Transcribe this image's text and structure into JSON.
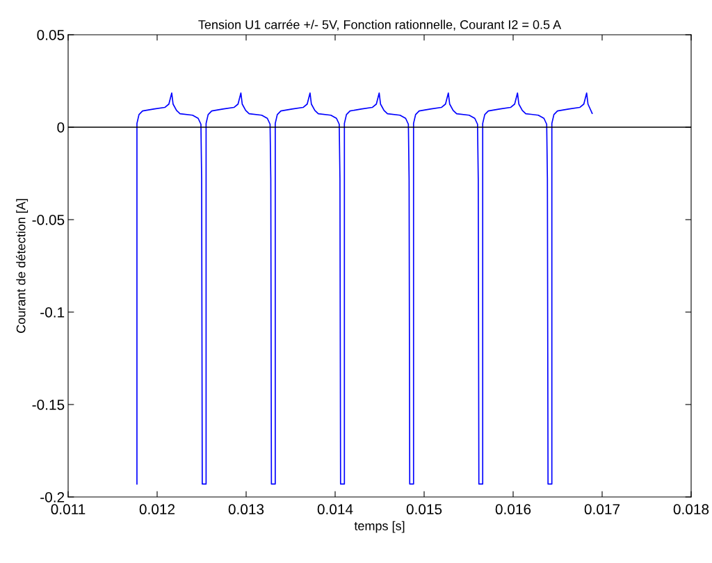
{
  "chart_data": {
    "type": "line",
    "title": "Tension U1 carrée +/- 5V, Fonction rationnelle, Courant I2 = 0.5 A",
    "xlabel": "temps [s]",
    "ylabel": "Courant de détection [A]",
    "series": [
      {
        "color": "#0000ff",
        "x": [
          0.011773,
          0.011773,
          0.011773,
          0.011796,
          0.011836,
          0.011961,
          0.012086,
          0.012132,
          0.012164,
          0.012179,
          0.012218,
          0.012257,
          0.012398,
          0.012461,
          0.012492,
          0.0125,
          0.012507,
          0.01255,
          0.01255,
          0.012573,
          0.012613,
          0.012738,
          0.012863,
          0.012909,
          0.012941,
          0.012956,
          0.012995,
          0.013034,
          0.013175,
          0.013238,
          0.013269,
          0.013277,
          0.013284,
          0.013327,
          0.013327,
          0.01335,
          0.01339,
          0.013515,
          0.01364,
          0.013686,
          0.013718,
          0.013733,
          0.013772,
          0.013811,
          0.013952,
          0.014015,
          0.014046,
          0.014054,
          0.014061,
          0.014104,
          0.014104,
          0.014127,
          0.014167,
          0.014292,
          0.014417,
          0.014463,
          0.014495,
          0.01451,
          0.014549,
          0.014588,
          0.014729,
          0.014792,
          0.014823,
          0.014831,
          0.014838,
          0.014881,
          0.014881,
          0.014904,
          0.014944,
          0.015069,
          0.015194,
          0.01524,
          0.015272,
          0.015287,
          0.015326,
          0.015365,
          0.015506,
          0.015569,
          0.0156,
          0.015608,
          0.015615,
          0.015658,
          0.015658,
          0.015681,
          0.015721,
          0.015846,
          0.015971,
          0.016017,
          0.016049,
          0.016064,
          0.016103,
          0.016142,
          0.016283,
          0.016346,
          0.016377,
          0.016385,
          0.016392,
          0.016435,
          0.016435,
          0.016458,
          0.016498,
          0.016623,
          0.016748,
          0.016794,
          0.016826,
          0.016841,
          0.016888
        ],
        "values": [
          -0.193,
          -0.019,
          0.002,
          0.0068,
          0.0088,
          0.0098,
          0.0107,
          0.0125,
          0.0185,
          0.0125,
          0.0091,
          0.0073,
          0.0065,
          0.0048,
          0.0016,
          -0.028,
          -0.193,
          -0.193,
          0.002,
          0.0068,
          0.0088,
          0.0098,
          0.0107,
          0.0125,
          0.0185,
          0.0125,
          0.0091,
          0.0073,
          0.0065,
          0.0048,
          0.0016,
          -0.028,
          -0.193,
          -0.193,
          0.002,
          0.0068,
          0.0088,
          0.0098,
          0.0107,
          0.0125,
          0.0185,
          0.0125,
          0.0091,
          0.0073,
          0.0065,
          0.0048,
          0.0016,
          -0.028,
          -0.193,
          -0.193,
          0.002,
          0.0068,
          0.0088,
          0.0098,
          0.0107,
          0.0125,
          0.0185,
          0.0125,
          0.0091,
          0.0073,
          0.0065,
          0.0048,
          0.0016,
          -0.028,
          -0.193,
          -0.193,
          0.002,
          0.0068,
          0.0088,
          0.0098,
          0.0107,
          0.0125,
          0.0185,
          0.0125,
          0.0091,
          0.0073,
          0.0065,
          0.0048,
          0.0016,
          -0.028,
          -0.193,
          -0.193,
          0.002,
          0.0068,
          0.0088,
          0.0098,
          0.0107,
          0.0125,
          0.0185,
          0.0125,
          0.0091,
          0.0073,
          0.0065,
          0.0048,
          0.0016,
          -0.028,
          -0.193,
          -0.193,
          0.002,
          0.0068,
          0.0088,
          0.0098,
          0.0107,
          0.0125,
          0.0185,
          0.0125,
          0.0075
        ]
      }
    ],
    "xlim": [
      0.011,
      0.018
    ],
    "xticks": [
      0.011,
      0.012,
      0.013,
      0.014,
      0.015,
      0.016,
      0.017,
      0.018
    ],
    "ylim": [
      -0.2,
      0.05
    ],
    "yticks": [
      -0.2,
      -0.15,
      -0.1,
      -0.05,
      0,
      0.05
    ],
    "ref_lines": [
      {
        "axis": "y",
        "value": 0,
        "color": "#000000",
        "line_style": "solid"
      }
    ],
    "grid": false,
    "marker": "none",
    "line_style": "solid"
  }
}
